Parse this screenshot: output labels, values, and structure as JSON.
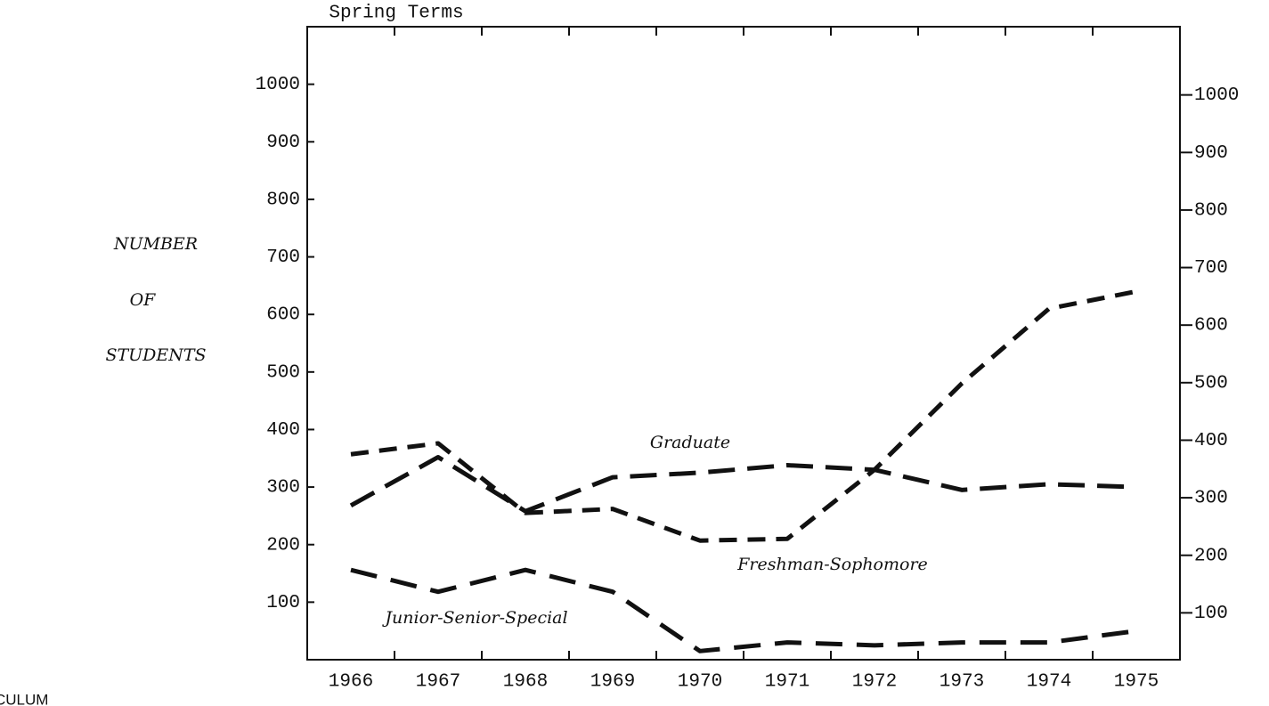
{
  "chart_data": {
    "type": "line",
    "title": "Spring Terms",
    "y_label": [
      "NUMBER",
      "OF",
      "STUDENTS"
    ],
    "categories": [
      "1966",
      "1967",
      "1968",
      "1969",
      "1970",
      "1971",
      "1972",
      "1973",
      "1974",
      "1975"
    ],
    "series": [
      {
        "name": "Graduate",
        "color": "#111111",
        "values": [
          268,
          352,
          258,
          317,
          325,
          338,
          330,
          295,
          305,
          300
        ]
      },
      {
        "name": "Freshman-Sophomore",
        "color": "#111111",
        "values": [
          357,
          376,
          255,
          262,
          207,
          210,
          330,
          480,
          610,
          640
        ]
      },
      {
        "name": "Junior-Senior-Special",
        "color": "#111111",
        "values": [
          156,
          118,
          156,
          118,
          15,
          30,
          25,
          30,
          30,
          50
        ]
      }
    ],
    "ylim": [
      0,
      1100
    ],
    "yticks": [
      100,
      200,
      300,
      400,
      500,
      600,
      700,
      800,
      900,
      1000
    ],
    "annotations": [
      "CULUM"
    ]
  }
}
